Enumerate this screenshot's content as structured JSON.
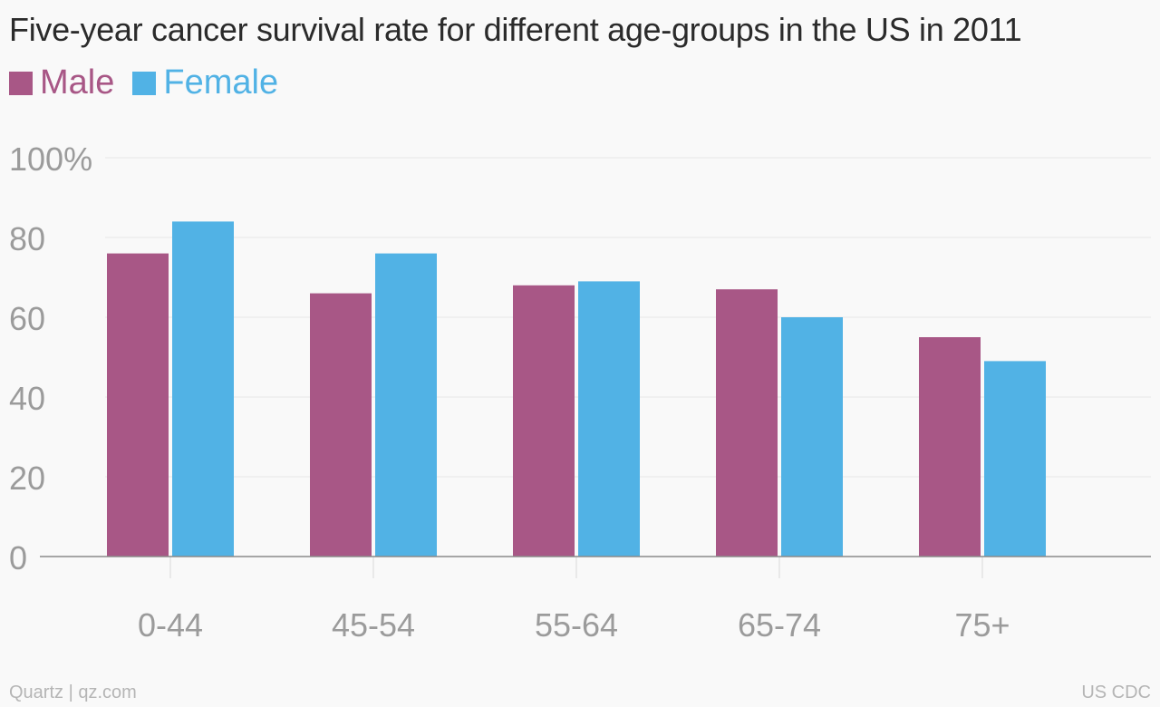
{
  "chart_data": {
    "type": "bar",
    "title": "Five-year cancer survival rate for different age-groups in the US in 2011",
    "categories": [
      "0-44",
      "45-54",
      "55-64",
      "65-74",
      "75+"
    ],
    "series": [
      {
        "name": "Male",
        "color": "#a85786",
        "values": [
          76,
          66,
          68,
          67,
          55
        ]
      },
      {
        "name": "Female",
        "color": "#51b2e5",
        "values": [
          84,
          76,
          69,
          60,
          49
        ]
      }
    ],
    "ylim": [
      0,
      100
    ],
    "yticks": [
      {
        "value": 0,
        "label": "0"
      },
      {
        "value": 20,
        "label": "20"
      },
      {
        "value": 40,
        "label": "40"
      },
      {
        "value": 60,
        "label": "60"
      },
      {
        "value": 80,
        "label": "80"
      },
      {
        "value": 100,
        "label": "100%"
      }
    ],
    "grid": true,
    "legend_position": "top-left"
  },
  "footer": {
    "credit": "Quartz | qz.com",
    "source": "US CDC"
  }
}
